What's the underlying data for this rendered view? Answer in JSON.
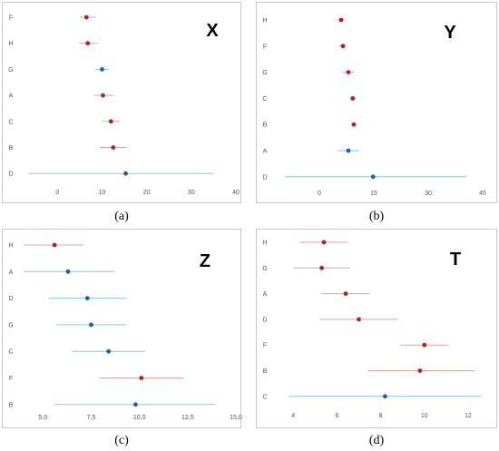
{
  "chart_data": [
    {
      "panel_caption": "(a)",
      "type": "forest",
      "title": "X",
      "xlim": [
        -8,
        40
      ],
      "xticks": [
        0,
        10,
        20,
        30,
        40
      ],
      "tick_labels": [
        "0",
        "10",
        "20",
        "30",
        "40"
      ],
      "rows": [
        {
          "label": "F",
          "point": 6.5,
          "low": 5,
          "high": 8.5,
          "color": "#b22222"
        },
        {
          "label": "H",
          "point": 6.8,
          "low": 4.8,
          "high": 9.0,
          "color": "#b22222"
        },
        {
          "label": "G",
          "point": 10.0,
          "low": 8.5,
          "high": 11.5,
          "color": "#1f5fa8"
        },
        {
          "label": "A",
          "point": 10.2,
          "low": 8.3,
          "high": 12.5,
          "color": "#b22222"
        },
        {
          "label": "C",
          "point": 12.0,
          "low": 10.0,
          "high": 14.0,
          "color": "#b22222"
        },
        {
          "label": "B",
          "point": 12.5,
          "low": 9.5,
          "high": 15.5,
          "color": "#b22222"
        },
        {
          "label": "D",
          "point": 15.3,
          "low": -6.5,
          "high": 35.0,
          "color": "#1f5fa8"
        }
      ]
    },
    {
      "panel_caption": "(b)",
      "type": "forest",
      "title": "Y",
      "xlim": [
        -12,
        47
      ],
      "xticks": [
        0,
        15,
        30,
        45
      ],
      "tick_labels": [
        "0",
        "15",
        "30",
        "45"
      ],
      "rows": [
        {
          "label": "H",
          "point": 6.0,
          "low": 5.0,
          "high": 7.0,
          "color": "#b22222"
        },
        {
          "label": "F",
          "point": 6.5,
          "low": 5.5,
          "high": 7.5,
          "color": "#b22222"
        },
        {
          "label": "G",
          "point": 8.0,
          "low": 6.5,
          "high": 9.5,
          "color": "#b22222"
        },
        {
          "label": "C",
          "point": 9.2,
          "low": 8.5,
          "high": 10.0,
          "color": "#b22222"
        },
        {
          "label": "B",
          "point": 9.5,
          "low": 8.8,
          "high": 10.2,
          "color": "#b22222"
        },
        {
          "label": "A",
          "point": 8.0,
          "low": 5.0,
          "high": 11.0,
          "color": "#1f5fa8"
        },
        {
          "label": "D",
          "point": 14.8,
          "low": -9.5,
          "high": 40.5,
          "color": "#1f5fa8"
        }
      ]
    },
    {
      "panel_caption": "(c)",
      "type": "forest",
      "title": "Z",
      "xlim": [
        3.9,
        15.0
      ],
      "xticks": [
        5.0,
        7.5,
        10.0,
        12.5,
        15.0
      ],
      "tick_labels": [
        "5,0",
        "7,5",
        "10,0",
        "12,5",
        "15,0"
      ],
      "rows": [
        {
          "label": "H",
          "point": 5.6,
          "low": 4.0,
          "high": 7.1,
          "color": "#b22222"
        },
        {
          "label": "A",
          "point": 6.3,
          "low": 4.0,
          "high": 8.7,
          "color": "#1f5fa8"
        },
        {
          "label": "D",
          "point": 7.3,
          "low": 5.3,
          "high": 9.3,
          "color": "#1f5fa8"
        },
        {
          "label": "G",
          "point": 7.5,
          "low": 5.7,
          "high": 9.3,
          "color": "#1f5fa8"
        },
        {
          "label": "C",
          "point": 8.4,
          "low": 6.5,
          "high": 10.3,
          "color": "#1f5fa8"
        },
        {
          "label": "F",
          "point": 10.1,
          "low": 7.9,
          "high": 12.3,
          "color": "#b22222"
        },
        {
          "label": "B",
          "point": 9.8,
          "low": 5.6,
          "high": 13.9,
          "color": "#1f5fa8"
        }
      ]
    },
    {
      "panel_caption": "(d)",
      "type": "forest",
      "title": "T",
      "xlim": [
        3.2,
        13.0
      ],
      "xticks": [
        4,
        6,
        8,
        10,
        12
      ],
      "tick_labels": [
        "4",
        "6",
        "8",
        "10",
        "12"
      ],
      "rows": [
        {
          "label": "H",
          "point": 5.4,
          "low": 4.3,
          "high": 6.5,
          "color": "#b22222"
        },
        {
          "label": "G",
          "point": 5.3,
          "low": 4.0,
          "high": 6.6,
          "color": "#b22222"
        },
        {
          "label": "A",
          "point": 6.4,
          "low": 5.3,
          "high": 7.5,
          "color": "#b22222"
        },
        {
          "label": "D",
          "point": 7.0,
          "low": 5.2,
          "high": 8.8,
          "color": "#b22222"
        },
        {
          "label": "F",
          "point": 10.0,
          "low": 8.9,
          "high": 11.1,
          "color": "#b22222"
        },
        {
          "label": "B",
          "point": 9.8,
          "low": 7.4,
          "high": 12.3,
          "color": "#b22222"
        },
        {
          "label": "C",
          "point": 8.2,
          "low": 3.8,
          "high": 12.6,
          "color": "#1f5fa8"
        }
      ]
    }
  ],
  "colors": {
    "red_point": "#b22222",
    "red_line": "#e8a0a0",
    "blue_point": "#1f5fa8",
    "blue_line": "#8cc4e8",
    "frame_border": "#c8c8c8",
    "tick_text": "#555555"
  }
}
